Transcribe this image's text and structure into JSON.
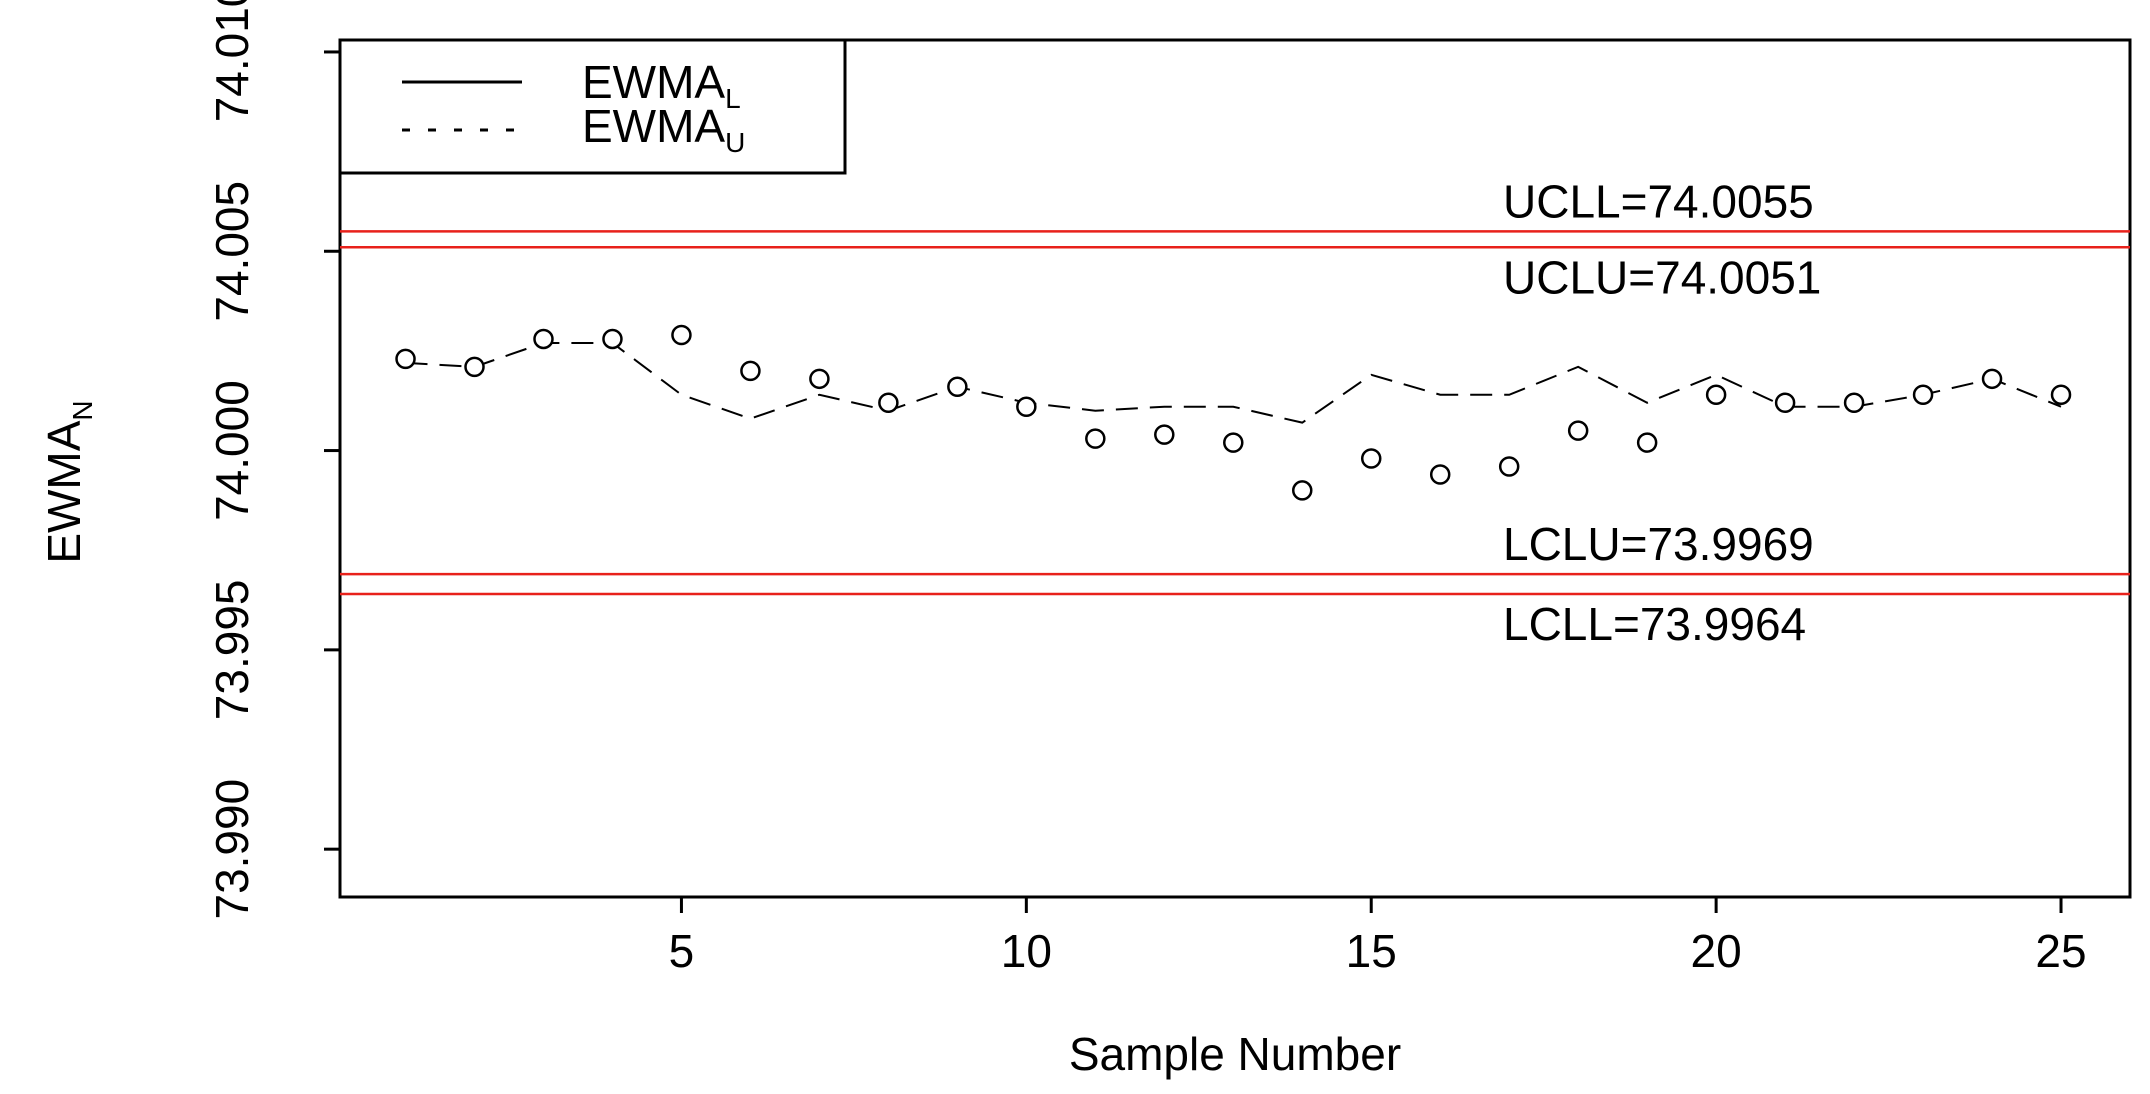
{
  "chart_data": {
    "type": "line",
    "xlabel": "Sample Number",
    "ylabel_main": "EWMA",
    "ylabel_sub": "N",
    "xlim": [
      0.05,
      26.0
    ],
    "ylim": [
      73.9888,
      74.0103
    ],
    "x_ticks": [
      5,
      10,
      15,
      20,
      25
    ],
    "x_tick_labels": [
      "5",
      "10",
      "15",
      "20",
      "25"
    ],
    "y_ticks": [
      73.99,
      73.995,
      74.0,
      74.005,
      74.01
    ],
    "y_tick_labels": [
      "73.990",
      "73.995",
      "74.000",
      "74.005",
      "74.010"
    ],
    "grid": false,
    "legend_position": "top-left",
    "legend": [
      {
        "main": "EWMA",
        "sub": "L",
        "style": "solid"
      },
      {
        "main": "EWMA",
        "sub": "U",
        "style": "dotted"
      }
    ],
    "series": [
      {
        "name": "EWMA_L",
        "style": "dashed",
        "x": [
          1,
          2,
          3,
          4,
          5,
          6,
          7,
          8,
          9,
          10,
          11,
          12,
          13,
          14,
          15,
          16,
          17,
          18,
          19,
          20,
          21,
          22,
          23,
          24,
          25
        ],
        "y": [
          74.0022,
          74.0021,
          74.0027,
          74.0027,
          74.0014,
          74.0008,
          74.0014,
          74.001,
          74.0016,
          74.0012,
          74.001,
          74.0011,
          74.0011,
          74.0007,
          74.0019,
          74.0014,
          74.0014,
          74.0021,
          74.0012,
          74.0019,
          74.0011,
          74.0011,
          74.0014,
          74.0018,
          74.0011
        ]
      },
      {
        "name": "EWMA_U",
        "style": "circles",
        "x": [
          1,
          2,
          3,
          4,
          5,
          6,
          7,
          8,
          9,
          10,
          11,
          12,
          13,
          14,
          15,
          16,
          17,
          18,
          19,
          20,
          21,
          22,
          23,
          24,
          25
        ],
        "y": [
          74.0023,
          74.0021,
          74.0028,
          74.0028,
          74.0029,
          74.002,
          74.0018,
          74.0012,
          74.0016,
          74.0011,
          74.0003,
          74.0004,
          74.0002,
          73.999,
          73.9998,
          73.9994,
          73.9996,
          74.0005,
          74.0002,
          74.0014,
          74.0012,
          74.0012,
          74.0014,
          74.0018,
          74.0014
        ]
      }
    ],
    "control_limits": [
      {
        "label": "UCLL=74.0055",
        "value": 74.0055,
        "color": "#e8211b",
        "label_side": "above"
      },
      {
        "label": "UCLU=74.0051",
        "value": 74.0051,
        "color": "#e8211b",
        "label_side": "below"
      },
      {
        "label": "LCLU=73.9969",
        "value": 73.9969,
        "color": "#e8211b",
        "label_side": "above"
      },
      {
        "label": "LCLL=73.9964",
        "value": 73.9964,
        "color": "#e8211b",
        "label_side": "below"
      }
    ]
  }
}
